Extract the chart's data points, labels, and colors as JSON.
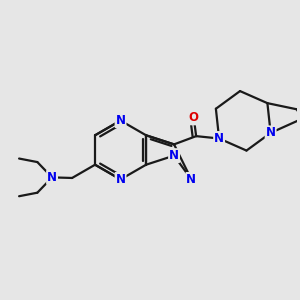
{
  "background_color": "#e6e6e6",
  "bond_color": "#1a1a1a",
  "nitrogen_color": "#0000ee",
  "oxygen_color": "#dd0000",
  "bond_width": 1.6,
  "font_size_atom": 8.5,
  "figsize": [
    3.0,
    3.0
  ],
  "dpi": 100,
  "xlim": [
    0,
    10
  ],
  "ylim": [
    0,
    10
  ]
}
